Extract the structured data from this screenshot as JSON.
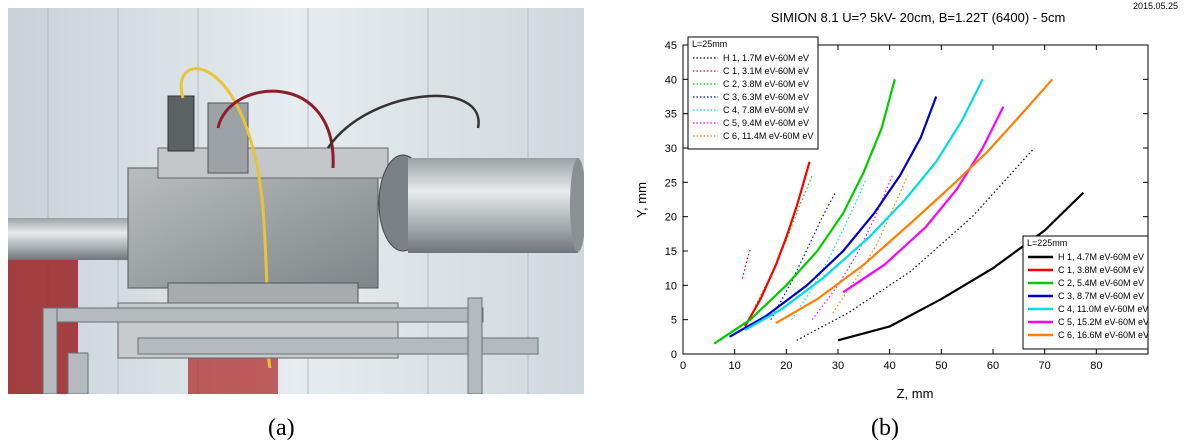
{
  "captions": {
    "a": "(a)",
    "b": "(b)"
  },
  "chart_data": {
    "type": "scatter",
    "title": "SIMION 8.1    U=?  5kV- 20cm,   B=1.22T (6400) - 5cm",
    "date": "2015.05.25",
    "xlabel": "Z, mm",
    "ylabel": "Y, mm",
    "xlim": [
      0,
      90
    ],
    "ylim": [
      0,
      45
    ],
    "xticks": [
      0,
      10,
      20,
      30,
      40,
      50,
      60,
      70,
      80
    ],
    "yticks": [
      0,
      5,
      10,
      15,
      20,
      25,
      30,
      35,
      40,
      45
    ],
    "grid": false,
    "legends": [
      {
        "title": "L=25mm",
        "placement": "top-left",
        "entries": [
          "H 1,  1.7M eV-60M eV",
          "C 1,  3.1M eV-60M eV",
          "C 2,  3.8M eV-60M eV",
          "C 3,  6.3M eV-60M eV",
          "C 4,  7.8M eV-60M eV",
          "C 5,  9.4M eV-60M eV",
          "C 6,  11.4M eV-60M eV"
        ]
      },
      {
        "title": "L=225mm",
        "placement": "bottom-right",
        "entries": [
          "H 1,  4.7M eV-60M eV",
          "C 1,  3.8M eV-60M eV",
          "C 2,  5.4M eV-60M eV",
          "C 3,  8.7M eV-60M eV",
          "C 4,  11.0M eV-60M eV",
          "C 5,  15.2M eV-60M eV",
          "C 6,  16.6M eV-60M eV"
        ]
      }
    ],
    "series": [
      {
        "name": "H 1,  1.7M eV-60M eV",
        "group": "L=25mm",
        "color": "#000000",
        "style": "dotted",
        "points": [
          [
            22,
            2
          ],
          [
            32,
            6
          ],
          [
            44,
            12
          ],
          [
            56,
            20
          ],
          [
            68,
            30
          ]
        ]
      },
      {
        "name": "C 1,  3.1M eV-60M eV",
        "group": "L=25mm",
        "color": "#ff0000",
        "style": "dotted",
        "points": [
          [
            11.5,
            11
          ],
          [
            12,
            12.5
          ],
          [
            12.5,
            14
          ],
          [
            13,
            15.2
          ]
        ]
      },
      {
        "name": "C 2,  3.8M eV-60M eV",
        "group": "L=25mm",
        "color": "#00cc00",
        "style": "dotted",
        "points": [
          [
            14,
            7
          ],
          [
            17,
            11.5
          ],
          [
            20,
            16.5
          ],
          [
            22.5,
            21.5
          ],
          [
            25,
            26
          ]
        ]
      },
      {
        "name": "C 3,  6.3M eV-60M eV",
        "group": "L=25mm",
        "color": "#0000cc",
        "style": "dotted",
        "points": [
          [
            17,
            5
          ],
          [
            21,
            10.5
          ],
          [
            24.5,
            16
          ],
          [
            27,
            20
          ],
          [
            29.5,
            23.5
          ]
        ]
      },
      {
        "name": "C 4,  7.8M eV-60M eV",
        "group": "L=25mm",
        "color": "#00dddd",
        "style": "dotted",
        "points": [
          [
            21,
            5
          ],
          [
            25,
            9.5
          ],
          [
            29,
            15
          ],
          [
            32.5,
            20.5
          ],
          [
            35.5,
            25.5
          ]
        ]
      },
      {
        "name": "C 5,  9.4M eV-60M eV",
        "group": "L=25mm",
        "color": "#ff00ff",
        "style": "dotted",
        "points": [
          [
            25,
            5
          ],
          [
            30,
            10
          ],
          [
            34,
            15
          ],
          [
            37.5,
            20.5
          ],
          [
            40.5,
            26
          ]
        ]
      },
      {
        "name": "C 6,  11.4M eV-60M eV",
        "group": "L=25mm",
        "color": "#ff8000",
        "style": "dotted",
        "points": [
          [
            29,
            6
          ],
          [
            33.5,
            11
          ],
          [
            37.5,
            16
          ],
          [
            40.5,
            21
          ],
          [
            43.5,
            26
          ]
        ]
      },
      {
        "name": "H 1,  4.7M eV-60M eV",
        "group": "L=225mm",
        "color": "#000000",
        "style": "solid",
        "points": [
          [
            30,
            2
          ],
          [
            40,
            4
          ],
          [
            50,
            8
          ],
          [
            60,
            12.5
          ],
          [
            70,
            18
          ],
          [
            77.5,
            23.5
          ]
        ]
      },
      {
        "name": "C 1,  3.8M eV-60M eV",
        "group": "L=225mm",
        "color": "#ff0000",
        "style": "solid",
        "points": [
          [
            12,
            4
          ],
          [
            15,
            8
          ],
          [
            18,
            13
          ],
          [
            20,
            17
          ],
          [
            22,
            21.5
          ],
          [
            24.5,
            28
          ]
        ]
      },
      {
        "name": "C 2,  5.4M eV-60M eV",
        "group": "L=225mm",
        "color": "#00cc00",
        "style": "solid",
        "points": [
          [
            6,
            1.5
          ],
          [
            13,
            5
          ],
          [
            20,
            10
          ],
          [
            26,
            15
          ],
          [
            31,
            20.5
          ],
          [
            35,
            26.5
          ],
          [
            38.5,
            33
          ],
          [
            41,
            40
          ]
        ]
      },
      {
        "name": "C 3,  8.7M eV-60M eV",
        "group": "L=225mm",
        "color": "#0000cc",
        "style": "solid",
        "points": [
          [
            9,
            2.5
          ],
          [
            16,
            5.5
          ],
          [
            24,
            10
          ],
          [
            31,
            15
          ],
          [
            37,
            20.5
          ],
          [
            42,
            26
          ],
          [
            46,
            31.5
          ],
          [
            49,
            37.5
          ]
        ]
      },
      {
        "name": "C 4,  11.0M eV-60M eV",
        "group": "L=225mm",
        "color": "#00dddd",
        "style": "solid",
        "points": [
          [
            12,
            3.5
          ],
          [
            19,
            6.5
          ],
          [
            27,
            11
          ],
          [
            36,
            17
          ],
          [
            43,
            22.5
          ],
          [
            49,
            28
          ],
          [
            54,
            34
          ],
          [
            58,
            40
          ]
        ]
      },
      {
        "name": "C 5,  15.2M eV-60M eV",
        "group": "L=225mm",
        "color": "#ff00ff",
        "style": "solid",
        "points": [
          [
            31,
            9
          ],
          [
            39,
            13
          ],
          [
            47,
            18.5
          ],
          [
            53,
            24
          ],
          [
            58,
            30
          ],
          [
            62,
            36
          ]
        ]
      },
      {
        "name": "C 6,  16.6M eV-60M eV",
        "group": "L=225mm",
        "color": "#ff8000",
        "style": "solid",
        "points": [
          [
            18,
            4.5
          ],
          [
            26,
            8
          ],
          [
            35,
            13
          ],
          [
            44,
            19
          ],
          [
            52,
            24.5
          ],
          [
            59,
            29.5
          ],
          [
            65,
            34.5
          ],
          [
            71.5,
            40
          ]
        ]
      }
    ]
  }
}
